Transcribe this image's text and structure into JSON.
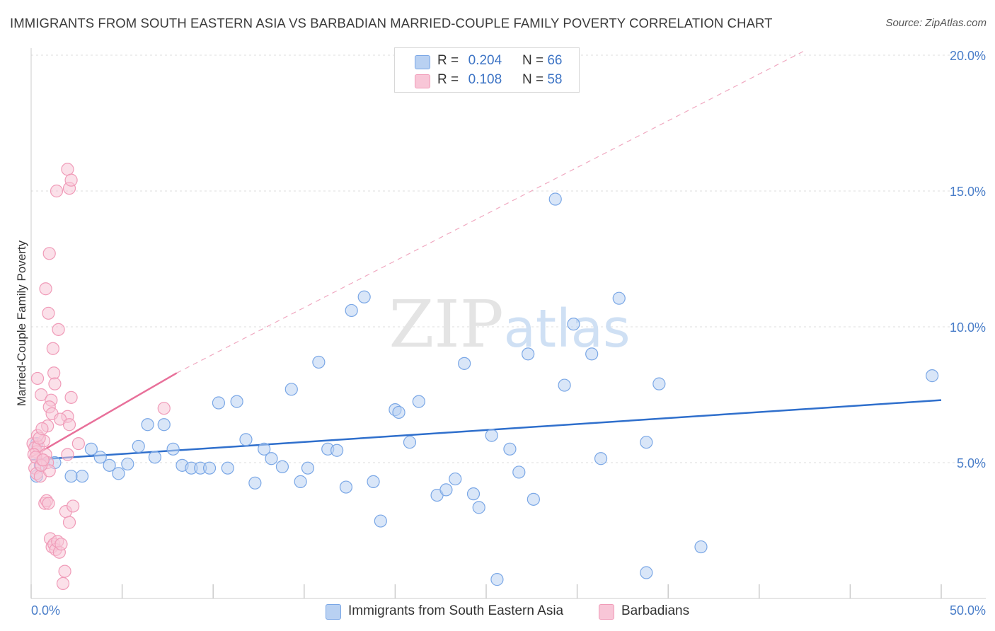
{
  "chart_data": {
    "type": "scatter",
    "title": "IMMIGRANTS FROM SOUTH EASTERN ASIA VS BARBADIAN MARRIED-COUPLE FAMILY POVERTY CORRELATION CHART",
    "source": "Source: ZipAtlas.com",
    "xlabel": "",
    "ylabel": "Married-Couple Family Poverty",
    "xlim": [
      0,
      50
    ],
    "ylim": [
      0,
      20
    ],
    "x_tick_labels": [
      "0.0%",
      "50.0%"
    ],
    "y_ticks": [
      5,
      10,
      15,
      20
    ],
    "y_tick_labels": [
      "5.0%",
      "10.0%",
      "15.0%",
      "20.0%"
    ],
    "watermark": "ZIPatlas",
    "legend_stats": [
      {
        "r_label": "R =",
        "r_value": "0.204",
        "n_label": "N =",
        "n_value": "66"
      },
      {
        "r_label": "R =",
        "r_value": "0.108",
        "n_label": "N =",
        "n_value": "58"
      }
    ],
    "series": [
      {
        "name": "Immigrants from South Eastern Asia",
        "color": "#7aa7e6",
        "fill": "#b9d1f2",
        "line_color": "#2f6fcc",
        "trend": {
          "x0": 0,
          "y0": 5.1,
          "x1": 50,
          "y1": 7.3
        },
        "points": [
          [
            0.5,
            4.9
          ],
          [
            0.3,
            4.5
          ],
          [
            1.3,
            5.0
          ],
          [
            2.2,
            4.5
          ],
          [
            2.8,
            4.5
          ],
          [
            3.3,
            5.5
          ],
          [
            3.8,
            5.2
          ],
          [
            4.3,
            4.9
          ],
          [
            4.8,
            4.6
          ],
          [
            5.3,
            4.95
          ],
          [
            5.9,
            5.6
          ],
          [
            6.4,
            6.4
          ],
          [
            6.8,
            5.2
          ],
          [
            7.3,
            6.4
          ],
          [
            7.8,
            5.5
          ],
          [
            8.3,
            4.9
          ],
          [
            8.8,
            4.8
          ],
          [
            9.3,
            4.8
          ],
          [
            9.8,
            4.8
          ],
          [
            10.3,
            7.2
          ],
          [
            10.8,
            4.8
          ],
          [
            11.3,
            7.25
          ],
          [
            11.8,
            5.85
          ],
          [
            12.3,
            4.25
          ],
          [
            12.8,
            5.5
          ],
          [
            13.2,
            5.15
          ],
          [
            13.8,
            4.85
          ],
          [
            14.3,
            7.7
          ],
          [
            14.8,
            4.3
          ],
          [
            15.2,
            4.8
          ],
          [
            15.8,
            8.7
          ],
          [
            16.3,
            5.5
          ],
          [
            16.8,
            5.45
          ],
          [
            17.3,
            4.1
          ],
          [
            17.6,
            10.6
          ],
          [
            18.3,
            11.1
          ],
          [
            18.8,
            4.3
          ],
          [
            19.2,
            2.85
          ],
          [
            20.0,
            6.95
          ],
          [
            20.2,
            6.85
          ],
          [
            20.8,
            5.75
          ],
          [
            21.3,
            7.25
          ],
          [
            22.3,
            3.8
          ],
          [
            22.8,
            4.0
          ],
          [
            23.3,
            4.4
          ],
          [
            23.8,
            8.65
          ],
          [
            24.3,
            3.85
          ],
          [
            24.6,
            3.35
          ],
          [
            25.3,
            6.0
          ],
          [
            25.6,
            0.7
          ],
          [
            26.3,
            5.5
          ],
          [
            26.8,
            4.65
          ],
          [
            27.3,
            9.0
          ],
          [
            27.6,
            3.65
          ],
          [
            28.8,
            14.7
          ],
          [
            29.3,
            7.85
          ],
          [
            29.8,
            10.1
          ],
          [
            30.8,
            9.0
          ],
          [
            31.3,
            5.15
          ],
          [
            32.3,
            11.05
          ],
          [
            33.8,
            5.75
          ],
          [
            34.5,
            7.9
          ],
          [
            33.8,
            0.95
          ],
          [
            36.8,
            1.9
          ],
          [
            49.5,
            8.2
          ],
          [
            0.3,
            5.7
          ]
        ]
      },
      {
        "name": "Barbadians",
        "color": "#f09bb8",
        "fill": "#f8c6d7",
        "line_color": "#e8709a",
        "trend_solid": {
          "x0": 0,
          "y0": 5.2,
          "x1": 8.0,
          "y1": 8.3
        },
        "trend_dashed": {
          "x0": 8.0,
          "y0": 8.3,
          "x1": 42.6,
          "y1": 20.2
        },
        "points": [
          [
            0.1,
            5.7
          ],
          [
            0.2,
            5.55
          ],
          [
            0.3,
            5.4
          ],
          [
            0.4,
            5.6
          ],
          [
            0.2,
            4.8
          ],
          [
            0.3,
            4.6
          ],
          [
            0.5,
            4.5
          ],
          [
            0.6,
            5.1
          ],
          [
            0.7,
            5.8
          ],
          [
            0.8,
            5.3
          ],
          [
            0.9,
            5.0
          ],
          [
            1.0,
            4.7
          ],
          [
            0.15,
            5.3
          ],
          [
            0.25,
            5.2
          ],
          [
            0.35,
            6.0
          ],
          [
            0.45,
            5.9
          ],
          [
            0.55,
            4.9
          ],
          [
            0.65,
            5.1
          ],
          [
            0.75,
            3.5
          ],
          [
            0.85,
            3.6
          ],
          [
            0.95,
            3.5
          ],
          [
            1.05,
            2.2
          ],
          [
            1.15,
            1.9
          ],
          [
            1.25,
            2.0
          ],
          [
            1.35,
            1.8
          ],
          [
            1.45,
            2.1
          ],
          [
            1.55,
            1.7
          ],
          [
            1.65,
            2.0
          ],
          [
            1.75,
            0.55
          ],
          [
            1.85,
            1.0
          ],
          [
            2.0,
            15.8
          ],
          [
            2.1,
            15.1
          ],
          [
            2.2,
            15.4
          ],
          [
            1.4,
            15.0
          ],
          [
            1.0,
            12.7
          ],
          [
            0.8,
            11.4
          ],
          [
            0.95,
            10.5
          ],
          [
            1.5,
            9.9
          ],
          [
            1.2,
            9.2
          ],
          [
            1.25,
            8.3
          ],
          [
            0.35,
            8.1
          ],
          [
            1.3,
            7.9
          ],
          [
            0.55,
            7.5
          ],
          [
            2.2,
            7.4
          ],
          [
            1.1,
            7.3
          ],
          [
            1.0,
            7.05
          ],
          [
            1.15,
            6.8
          ],
          [
            2.0,
            6.7
          ],
          [
            1.6,
            6.6
          ],
          [
            2.1,
            6.4
          ],
          [
            0.9,
            6.35
          ],
          [
            0.6,
            6.25
          ],
          [
            7.3,
            7.0
          ],
          [
            2.6,
            5.7
          ],
          [
            2.0,
            5.3
          ],
          [
            1.9,
            3.2
          ],
          [
            2.1,
            2.8
          ],
          [
            2.3,
            3.4
          ]
        ]
      }
    ]
  }
}
